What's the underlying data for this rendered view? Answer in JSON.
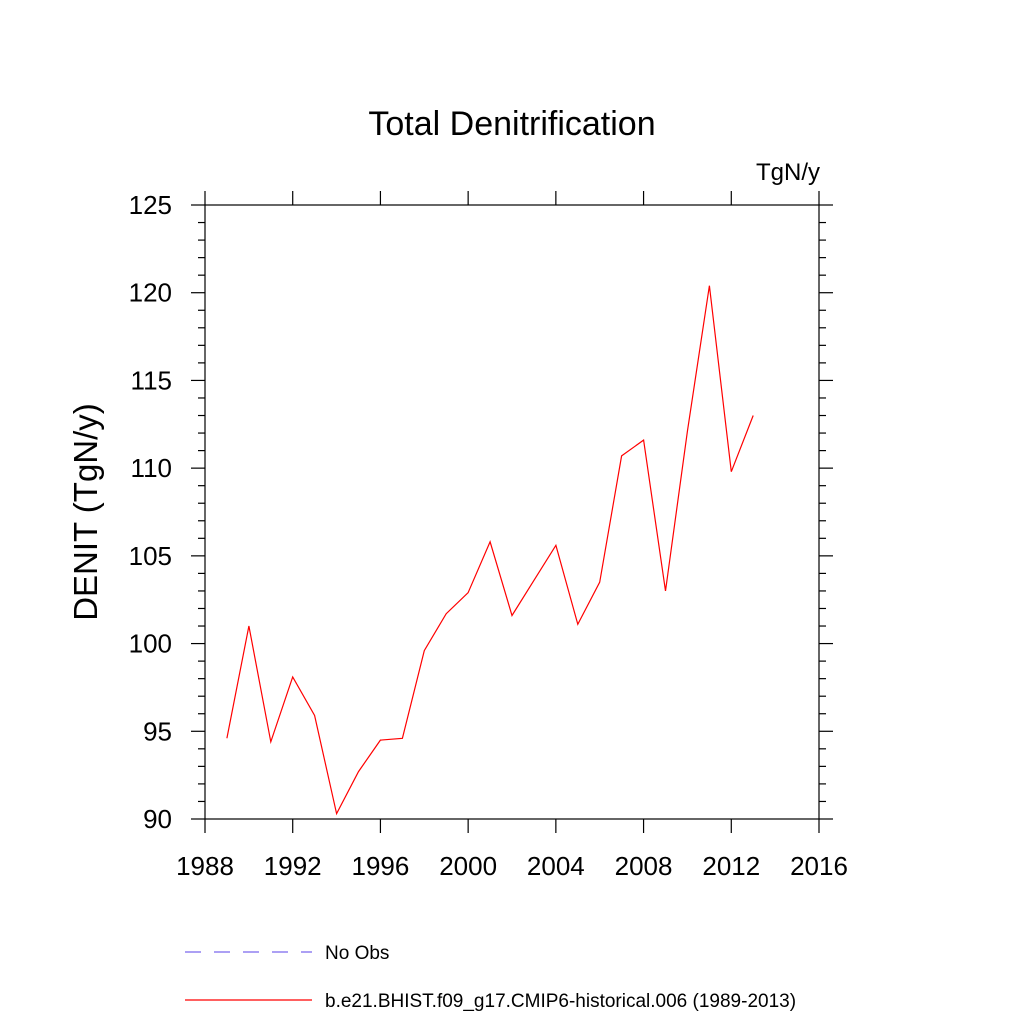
{
  "chart_data": {
    "type": "line",
    "title": "Total Denitrification",
    "units": "TgN/y",
    "ylabel": "DENIT  (TgN/y)",
    "xlabel": "",
    "xlim": [
      1988,
      2016
    ],
    "ylim": [
      90,
      125
    ],
    "x_ticks": [
      1988,
      1992,
      1996,
      2000,
      2004,
      2008,
      2012,
      2016
    ],
    "y_ticks": [
      90,
      95,
      100,
      105,
      110,
      115,
      120,
      125
    ],
    "grid": false,
    "legend_position": "bottom",
    "legend": [
      {
        "label": "No Obs",
        "color": "#7b68ee",
        "style": "dashed"
      },
      {
        "label": "b.e21.BHIST.f09_g17.CMIP6-historical.006 (1989-2013)",
        "color": "#ff0000",
        "style": "solid"
      }
    ],
    "series": [
      {
        "name": "b.e21.BHIST.f09_g17.CMIP6-historical.006 (1989-2013)",
        "color": "#ff0000",
        "x": [
          1989,
          1990,
          1991,
          1992,
          1993,
          1994,
          1995,
          1996,
          1997,
          1998,
          1999,
          2000,
          2001,
          2002,
          2003,
          2004,
          2005,
          2006,
          2007,
          2008,
          2009,
          2010,
          2011,
          2012,
          2013
        ],
        "values": [
          94.6,
          101.0,
          94.4,
          98.1,
          95.9,
          90.3,
          92.7,
          94.5,
          94.6,
          99.6,
          101.7,
          102.9,
          105.8,
          101.6,
          103.6,
          105.6,
          101.1,
          103.5,
          110.7,
          111.6,
          103.0,
          112.1,
          120.4,
          109.8,
          113.0
        ]
      }
    ]
  }
}
